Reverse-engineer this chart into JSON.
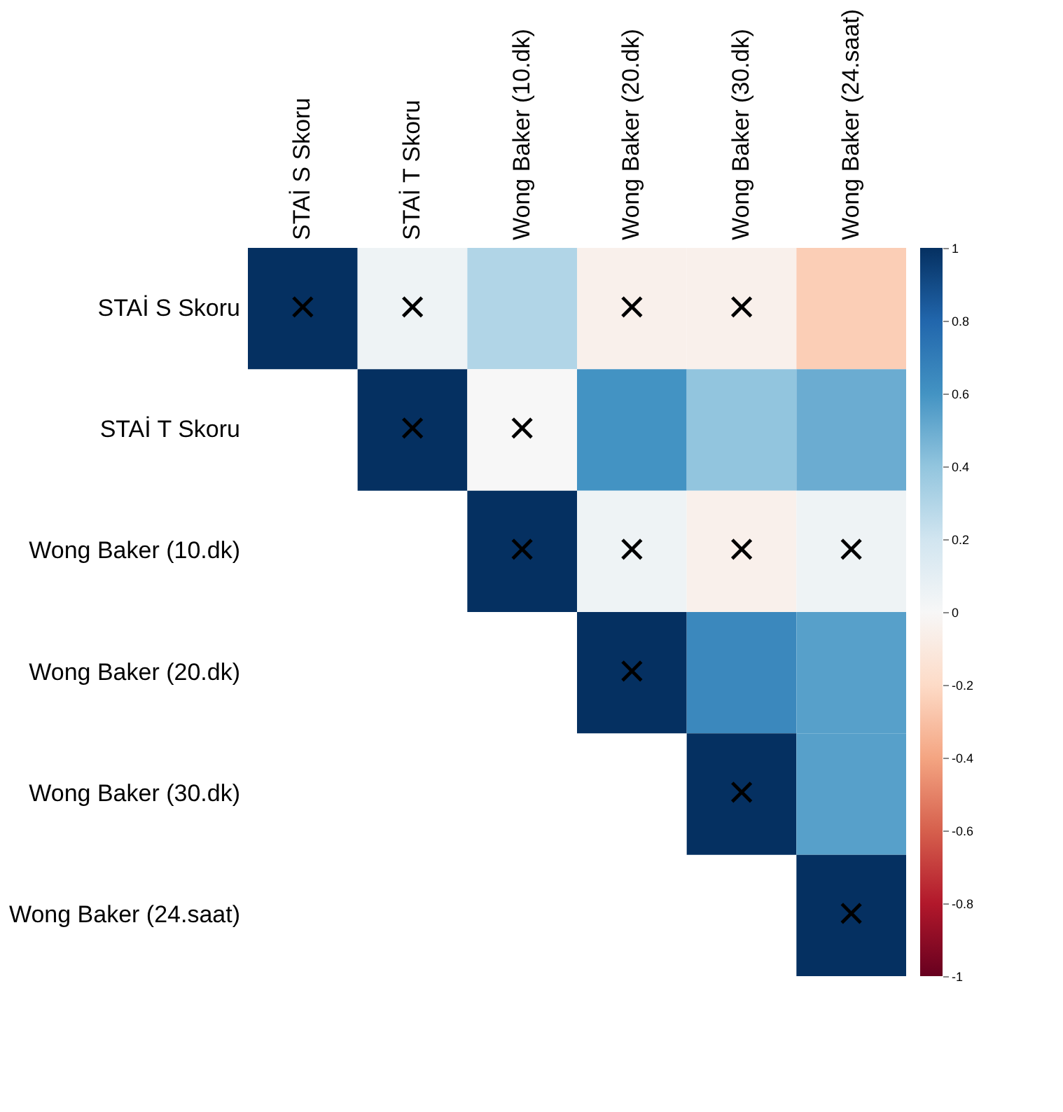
{
  "chart_data": {
    "type": "heatmap",
    "categories": [
      "STAİ S Skoru",
      "STAİ T Skoru",
      "Wong Baker (10.dk)",
      "Wong Baker (20.dk)",
      "Wong Baker (30.dk)",
      "Wong Baker (24.saat)"
    ],
    "y_categories": [
      "STAİ S Skoru",
      "STAİ T Skoru",
      "Wong Baker (10.dk)",
      "Wong Baker (20.dk)",
      "Wong Baker (30.dk)",
      "Wong Baker (24.saat)"
    ],
    "cells": [
      [
        1,
        0.05,
        0.3,
        -0.05,
        -0.05,
        -0.25
      ],
      [
        null,
        1,
        0.0,
        0.6,
        0.4,
        0.5
      ],
      [
        null,
        null,
        1,
        0.05,
        -0.05,
        0.05
      ],
      [
        null,
        null,
        null,
        1,
        0.65,
        0.55
      ],
      [
        null,
        null,
        null,
        null,
        1,
        0.55
      ],
      [
        null,
        null,
        null,
        null,
        null,
        1
      ]
    ],
    "cell_labels": [
      [
        "×",
        "×",
        null,
        "×",
        "×",
        null
      ],
      [
        null,
        "×",
        "×",
        null,
        null,
        null
      ],
      [
        null,
        null,
        "×",
        "×",
        "×",
        "×"
      ],
      [
        null,
        null,
        null,
        "×",
        null,
        null
      ],
      [
        null,
        null,
        null,
        null,
        "×",
        null
      ],
      [
        null,
        null,
        null,
        null,
        null,
        "×"
      ]
    ],
    "clim": [
      -1,
      1
    ],
    "cticks": [
      1,
      0.8,
      0.6,
      0.4,
      0.2,
      0,
      -0.2,
      -0.4,
      -0.6,
      -0.8,
      -1
    ]
  }
}
